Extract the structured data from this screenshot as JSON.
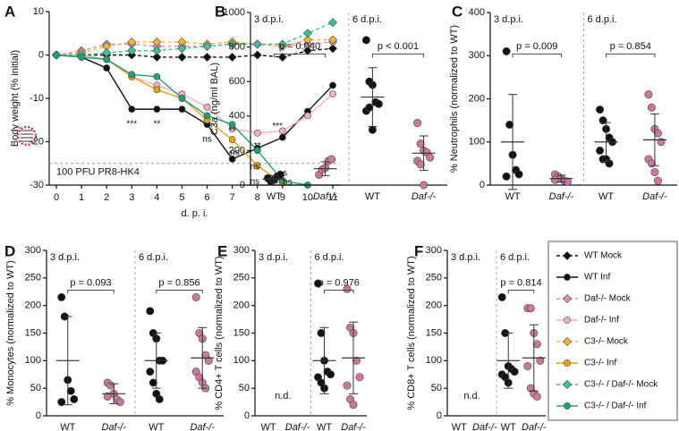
{
  "chart_data": [
    {
      "type": "line",
      "panel": "A",
      "xlabel": "d. p. i.",
      "ylabel": "Body weight (% initial)",
      "x": [
        0,
        1,
        2,
        3,
        4,
        5,
        6,
        7,
        8,
        9,
        10,
        11
      ],
      "xlim": [
        0,
        11
      ],
      "xticks": [
        0,
        1,
        2,
        3,
        4,
        5,
        6,
        7,
        8,
        9,
        10,
        11
      ],
      "ylim": [
        -30,
        10
      ],
      "yticks": [
        -30,
        -20,
        -10,
        0,
        10
      ],
      "threshold": -25,
      "inset_text": "100 PFU PR8-HK4",
      "series": [
        {
          "name": "WT Mock",
          "color": "#111111",
          "marker": "diamond",
          "dashed": true,
          "values": [
            0,
            0,
            0,
            0,
            -0.5,
            -0.5,
            -0.5,
            -0.5,
            0,
            -0.5,
            1,
            1.5
          ]
        },
        {
          "name": "WT Inf",
          "color": "#111111",
          "marker": "circle",
          "dashed": false,
          "values": [
            0,
            -0.5,
            -3,
            -12.5,
            -12.5,
            -12.5,
            -16,
            -24,
            -21.5,
            -19,
            -13,
            -7
          ]
        },
        {
          "name": "Daf-/- Mock",
          "color": "#d98fbc",
          "marker": "diamond",
          "dashed": true,
          "values": [
            0,
            1,
            2.5,
            2.5,
            2,
            2,
            2,
            2.5,
            2.5,
            2,
            2.5,
            3
          ]
        },
        {
          "name": "Daf-/- Inf",
          "color": "#f1b3b8",
          "marker": "circle",
          "dashed": false,
          "values": [
            0,
            0,
            -1,
            -5,
            -7,
            -9,
            -12,
            -17,
            -18,
            -17.5,
            -14,
            -9
          ]
        },
        {
          "name": "C3-/- Mock",
          "color": "#f4b33a",
          "marker": "diamond",
          "dashed": true,
          "values": [
            0,
            0.5,
            2,
            3,
            3,
            3,
            2.5,
            3,
            2.5,
            2,
            3.5,
            3.5
          ]
        },
        {
          "name": "C3-/- Inf",
          "color": "#e8a21a",
          "marker": "circle",
          "dashed": false,
          "values": [
            0,
            -0.5,
            -1,
            -5,
            -8,
            -10,
            -15,
            -19.5,
            -25.5,
            -29.5,
            null,
            null
          ]
        },
        {
          "name": "C3-/- / Daf-/- Mock",
          "color": "#3fbf99",
          "marker": "diamond",
          "dashed": true,
          "values": [
            0,
            0,
            0.5,
            1,
            1,
            1.5,
            2,
            2.5,
            2.5,
            2.5,
            5,
            7.5
          ]
        },
        {
          "name": "C3-/- / Daf-/- Inf",
          "color": "#1f9e78",
          "marker": "circle",
          "dashed": false,
          "values": [
            0,
            -0.5,
            -1,
            -4.5,
            -5,
            -10,
            -14,
            -16,
            -22,
            -29,
            -30,
            null
          ]
        }
      ],
      "annotations": [
        {
          "text": "***",
          "x": 3,
          "y": -16
        },
        {
          "text": "**",
          "x": 4,
          "y": -16
        },
        {
          "text": "ns",
          "x": 6,
          "y": -19.5
        },
        {
          "text": "**",
          "x": 7,
          "y": -17.5
        },
        {
          "text": "ns",
          "x": 7.1,
          "y": -22.5
        },
        {
          "text": "**",
          "x": 8,
          "y": -21
        },
        {
          "text": "***",
          "x": 8.8,
          "y": -16.5
        },
        {
          "text": "ns",
          "x": 7.9,
          "y": -25.8
        },
        {
          "text": "ns",
          "x": 9,
          "y": -27.3
        },
        {
          "text": "ns",
          "x": 7.9,
          "y": -29.2
        },
        {
          "text": "ns",
          "x": 9.2,
          "y": -29.4
        }
      ]
    },
    {
      "type": "dot",
      "panel": "B",
      "ylabel": "C3a (ng/ml BAL)",
      "ylim": [
        0,
        1000
      ],
      "yticks": [
        0,
        200,
        400,
        600,
        800,
        1000
      ],
      "groups": [
        "3 d.p.i.",
        "6 d.p.i."
      ],
      "categories": [
        "WT",
        "Daf-/-",
        "WT",
        "Daf-/-"
      ],
      "colors": [
        "#111111",
        "#c9799f",
        "#111111",
        "#c9799f"
      ],
      "points": [
        [
          40,
          20,
          30,
          50,
          60
        ],
        [
          60,
          90,
          100,
          140,
          150
        ],
        [
          840,
          600,
          580,
          480,
          470,
          430,
          450,
          320
        ],
        [
          360,
          240,
          200,
          190,
          160,
          140,
          120,
          0
        ]
      ],
      "means": [
        35,
        95,
        510,
        185
      ],
      "sds": [
        20,
        40,
        170,
        100
      ],
      "pvalues": [
        "p = 0.040",
        "p < 0.001"
      ]
    },
    {
      "type": "dot",
      "panel": "C",
      "ylabel": "% Neutrophils (normalized to WT)",
      "ylim": [
        0,
        400
      ],
      "yticks": [
        0,
        100,
        200,
        300,
        400
      ],
      "groups": [
        "3 d.p.i.",
        "6 d.p.i."
      ],
      "categories": [
        "WT",
        "Daf-/-",
        "WT",
        "Daf-/-"
      ],
      "colors": [
        "#111111",
        "#c9799f",
        "#111111",
        "#c9799f"
      ],
      "points": [
        [
          310,
          140,
          70,
          35,
          25,
          20
        ],
        [
          25,
          20,
          15,
          10,
          8,
          12
        ],
        [
          175,
          150,
          130,
          110,
          100,
          80,
          60,
          60,
          50
        ],
        [
          210,
          180,
          130,
          120,
          100,
          60,
          50,
          30,
          10
        ]
      ],
      "means": [
        100,
        15,
        100,
        105
      ],
      "sds": [
        110,
        8,
        45,
        60
      ],
      "pvalues": [
        "p = 0.009",
        "p = 0.854"
      ]
    },
    {
      "type": "dot",
      "panel": "D",
      "ylabel": "% Monocytes (normalized to WT)",
      "ylim": [
        0,
        300
      ],
      "yticks": [
        0,
        50,
        100,
        150,
        200,
        250,
        300
      ],
      "groups": [
        "3 d.p.i.",
        "6 d.p.i."
      ],
      "categories": [
        "WT",
        "Daf-/-",
        "WT",
        "Daf-/-"
      ],
      "colors": [
        "#111111",
        "#c9799f",
        "#111111",
        "#c9799f"
      ],
      "points": [
        [
          215,
          180,
          65,
          45,
          30,
          25
        ],
        [
          60,
          55,
          40,
          30,
          25,
          35
        ],
        [
          190,
          150,
          140,
          100,
          100,
          80,
          60,
          40,
          30
        ],
        [
          215,
          150,
          140,
          110,
          100,
          80,
          70,
          60,
          50
        ]
      ],
      "means": [
        100,
        40,
        100,
        105
      ],
      "sds": [
        80,
        18,
        50,
        55
      ],
      "pvalues": [
        "p = 0.093",
        "p = 0.856"
      ]
    },
    {
      "type": "dot",
      "panel": "E",
      "ylabel": "% CD4+ T cells (normalized to WT)",
      "ylim": [
        0,
        300
      ],
      "yticks": [
        0,
        50,
        100,
        150,
        200,
        250,
        300
      ],
      "groups": [
        "3 d.p.i.",
        "6 d.p.i."
      ],
      "categories": [
        "WT",
        "Daf-/-",
        "WT",
        "Daf-/-"
      ],
      "colors": [
        "#111111",
        "#c9799f",
        "#111111",
        "#c9799f"
      ],
      "points": [
        [],
        [],
        [
          240,
          150,
          100,
          80,
          75,
          70,
          60,
          50
        ],
        [
          230,
          160,
          150,
          100,
          70,
          55,
          30,
          20
        ]
      ],
      "means": [
        null,
        null,
        100,
        105
      ],
      "sds": [
        null,
        null,
        60,
        65
      ],
      "pvalues": [
        null,
        "p = 0.976"
      ],
      "nd": "n.d."
    },
    {
      "type": "dot",
      "panel": "F",
      "ylabel": "% CD8+ T cells (normalized to WT)",
      "ylim": [
        0,
        300
      ],
      "yticks": [
        0,
        50,
        100,
        150,
        200,
        250,
        300
      ],
      "groups": [
        "3 d.p.i.",
        "6 d.p.i."
      ],
      "categories": [
        "WT",
        "Daf-/-",
        "WT",
        "Daf-/-"
      ],
      "colors": [
        "#111111",
        "#c9799f",
        "#111111",
        "#c9799f"
      ],
      "points": [
        [],
        [],
        [
          215,
          150,
          90,
          85,
          80,
          75,
          70,
          60
        ],
        [
          195,
          195,
          150,
          130,
          100,
          90,
          50,
          40,
          35
        ]
      ],
      "means": [
        null,
        null,
        100,
        105
      ],
      "sds": [
        null,
        null,
        50,
        60
      ],
      "pvalues": [
        null,
        "p = 0.814"
      ],
      "nd": "n.d."
    }
  ]
}
